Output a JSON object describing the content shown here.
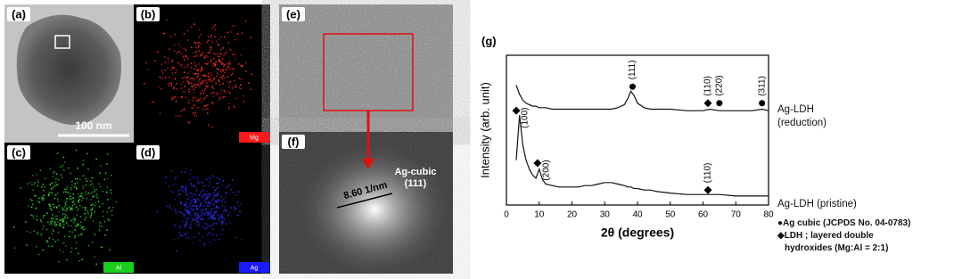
{
  "panels": {
    "a": {
      "label": "(a)",
      "scale_bar": "100 nm"
    },
    "b": {
      "label": "(b)",
      "element": "Mg"
    },
    "c": {
      "label": "(c)",
      "element": "Al"
    },
    "d": {
      "label": "(d)",
      "element": "Ag"
    },
    "e": {
      "label": "(e)"
    },
    "f": {
      "label": "(f)",
      "phase": "Ag-cubic",
      "plane": "(111)",
      "spacing": "8.60 1/nm"
    }
  },
  "chart_data": {
    "type": "line",
    "panel_label": "(g)",
    "xlabel": "2θ (degrees)",
    "ylabel": "Intensity (arb. unit)",
    "x": [
      3,
      4,
      5,
      6,
      7,
      8,
      9,
      10,
      11,
      12,
      14,
      16,
      18,
      20,
      22,
      24,
      26,
      28,
      30,
      32,
      34,
      36,
      37,
      38,
      39,
      40,
      42,
      44,
      46,
      50,
      55,
      60,
      62,
      65,
      70,
      75,
      78,
      80
    ],
    "xlim": [
      0,
      80
    ],
    "xticks": [
      0,
      10,
      20,
      30,
      40,
      50,
      60,
      70,
      80
    ],
    "ylim": [
      0,
      100
    ],
    "series": [
      {
        "name": "Ag-LDH (reduction)",
        "color": "#111111",
        "values": [
          80,
          74,
          70,
          68,
          67,
          66,
          66,
          65,
          65,
          65,
          64,
          64,
          64,
          64,
          64,
          64,
          64,
          64,
          64,
          64,
          65,
          67,
          71,
          76,
          73,
          68,
          65,
          64,
          64,
          64,
          63,
          63,
          64,
          63,
          63,
          63,
          64,
          63
        ]
      },
      {
        "name": "Ag-LDH (pristine)",
        "color": "#111111",
        "values": [
          30,
          60,
          40,
          30,
          24,
          20,
          18,
          24,
          17,
          14,
          13,
          12,
          12,
          12,
          12,
          13,
          13,
          14,
          15,
          15,
          14,
          13,
          12,
          12,
          11,
          11,
          10,
          10,
          9,
          8,
          7,
          7,
          7,
          7,
          6,
          6,
          6,
          6
        ]
      }
    ],
    "annotations": [
      {
        "label": "(100)",
        "x": 3,
        "y": 63,
        "marker": "diamond"
      },
      {
        "label": "(200)",
        "x": 9.5,
        "y": 28,
        "marker": "diamond"
      },
      {
        "label": "(111)",
        "x": 38.5,
        "y": 79,
        "marker": "circle"
      },
      {
        "label": "(110)",
        "x": 61.5,
        "y": 68,
        "marker": "diamond"
      },
      {
        "label": "(220)",
        "x": 65,
        "y": 68,
        "marker": "circle"
      },
      {
        "label": "(311)",
        "x": 78,
        "y": 68,
        "marker": "circle"
      },
      {
        "label": "(110)",
        "x": 61.5,
        "y": 10,
        "marker": "diamond"
      }
    ],
    "legend": [
      "●Ag cubic (JCPDS No. 04-0783)",
      "◆LDH ; layered double",
      "hydroxides (Mg:Al = 2:1)"
    ]
  }
}
